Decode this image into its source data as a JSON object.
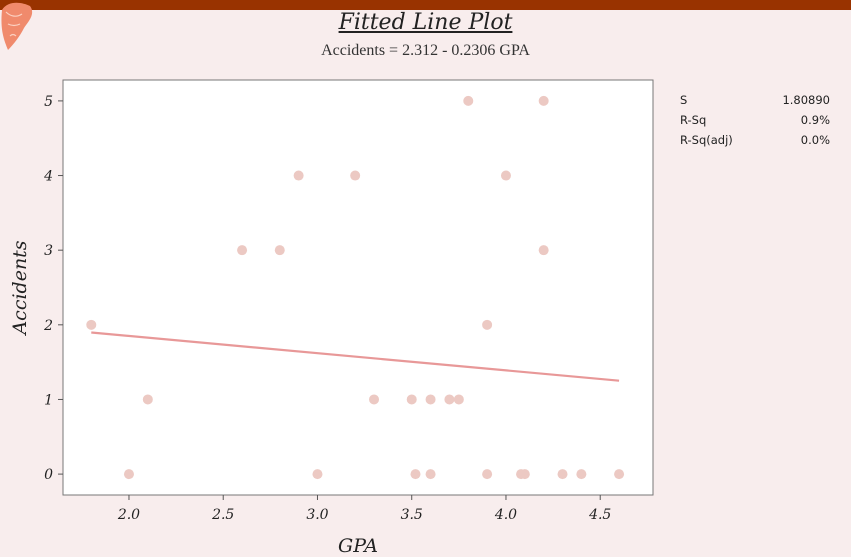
{
  "header": {
    "title": "Fitted Line Plot",
    "subtitle": "Accidents = 2.312 - 0.2306 GPA"
  },
  "stats": [
    {
      "label": "S",
      "value": "1.80890"
    },
    {
      "label": "R-Sq",
      "value": "0.9%"
    },
    {
      "label": "R-Sq(adj)",
      "value": "0.0%"
    }
  ],
  "colors": {
    "background": "#f8eded",
    "plot_area": "#ffffff",
    "point": "#ecc9c3",
    "fit_line": "#e89898",
    "top_bar": "#993300"
  },
  "chart_data": {
    "type": "scatter",
    "title": "Fitted Line Plot",
    "subtitle": "Accidents = 2.312 - 0.2306 GPA",
    "xlabel": "GPA",
    "ylabel": "Accidents",
    "xlim": [
      1.65,
      4.78
    ],
    "ylim": [
      -0.28,
      5.28
    ],
    "xticks": [
      2.0,
      2.5,
      3.0,
      3.5,
      4.0,
      4.5
    ],
    "xtick_labels": [
      "2.0",
      "2.5",
      "3.0",
      "3.5",
      "4.0",
      "4.5"
    ],
    "yticks": [
      0,
      1,
      2,
      3,
      4,
      5
    ],
    "ytick_labels": [
      "0",
      "1",
      "2",
      "3",
      "4",
      "5"
    ],
    "grid": false,
    "points": {
      "x": [
        1.8,
        2.0,
        2.1,
        2.6,
        2.8,
        2.9,
        3.0,
        3.2,
        3.3,
        3.5,
        3.52,
        3.6,
        3.6,
        3.7,
        3.75,
        3.8,
        3.9,
        3.9,
        4.0,
        4.08,
        4.1,
        4.2,
        4.2,
        4.3,
        4.4,
        4.6
      ],
      "y": [
        2,
        0,
        1,
        3,
        3,
        4,
        0,
        4,
        1,
        1,
        0,
        1,
        0,
        1,
        1,
        5,
        2,
        0,
        4,
        0,
        0,
        5,
        3,
        0,
        0,
        0
      ]
    },
    "fit_line": {
      "intercept": 2.312,
      "slope": -0.2306,
      "x_range": [
        1.8,
        4.6
      ]
    }
  }
}
